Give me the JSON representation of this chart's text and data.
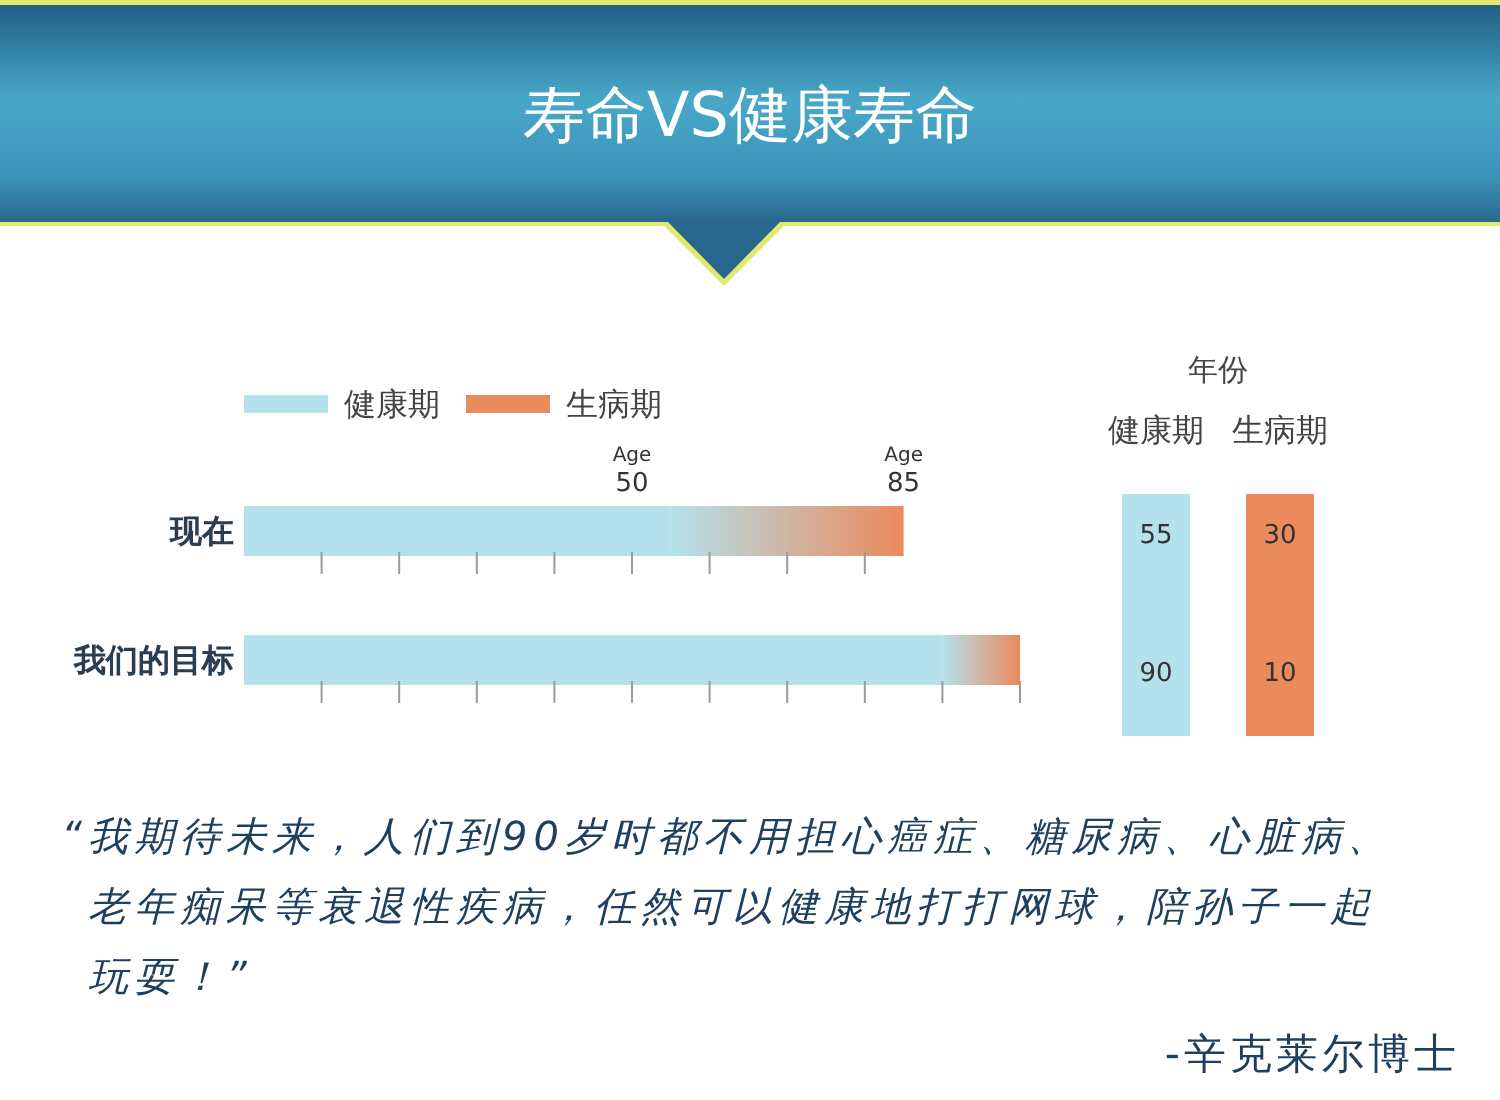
{
  "chart_data": {
    "type": "bar",
    "orientation": "horizontal",
    "stacked": true,
    "title": "寿命VS健康寿命",
    "categories": [
      "现在",
      "我们的目标"
    ],
    "series": [
      {
        "name": "健康期",
        "color": "#b4e1ec",
        "values": [
          55,
          90
        ]
      },
      {
        "name": "生病期",
        "color": "#eb8a5c",
        "values": [
          30,
          10
        ]
      }
    ],
    "xlim": [
      0,
      100
    ],
    "xticks": [
      {
        "value": 10,
        "label": null
      },
      {
        "value": 20,
        "label": null
      },
      {
        "value": 30,
        "label": null
      },
      {
        "value": 40,
        "label": null
      },
      {
        "value": 50,
        "label": null
      },
      {
        "value": 60,
        "label": null
      },
      {
        "value": 70,
        "label": null
      },
      {
        "value": 80,
        "label": null
      },
      {
        "value": 90,
        "label": null
      },
      {
        "value": 100,
        "label": null
      }
    ],
    "x2lim": [
      0,
      100
    ],
    "x2ticks": [
      50,
      85
    ],
    "x2label": "Age",
    "data_labels": true,
    "legend": "top left",
    "annotations": [
      "年份",
      "“我期待未来，人们到90岁时都不用担心癌症、糖尿病、心脏病、老年痴呆等衰退性疾病，任然可以健康地打打网球，陪孙子一起玩耍！”",
      "-辛克莱尔博士"
    ]
  }
}
